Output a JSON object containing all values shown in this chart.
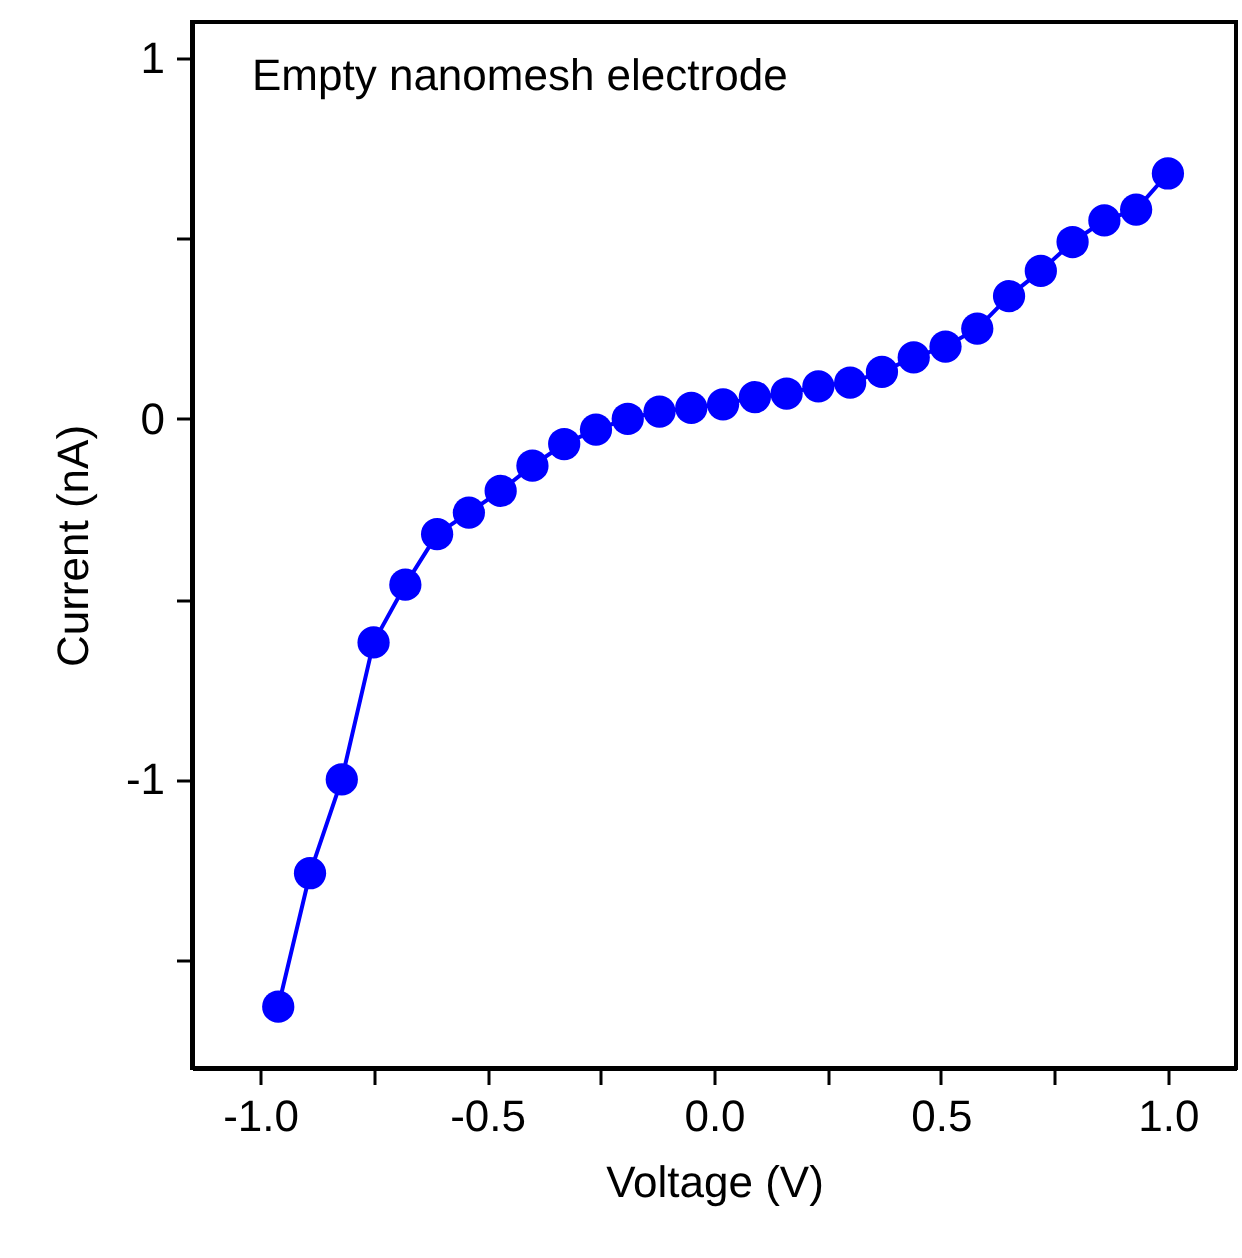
{
  "chart_data": {
    "type": "line",
    "xlabel": "Voltage (V)",
    "ylabel": "Current (nA)",
    "annotations": [
      "Empty nanomesh electrode"
    ],
    "x": [
      -0.96,
      -0.89,
      -0.82,
      -0.75,
      -0.68,
      -0.61,
      -0.54,
      -0.47,
      -0.4,
      -0.33,
      -0.26,
      -0.19,
      -0.12,
      -0.05,
      0.02,
      0.09,
      0.16,
      0.23,
      0.3,
      0.37,
      0.44,
      0.51,
      0.58,
      0.65,
      0.72,
      0.79,
      0.86,
      0.93,
      1.0
    ],
    "series": [
      {
        "color": "#0000ff",
        "values": [
          -1.63,
          -1.26,
          -1.0,
          -0.62,
          -0.46,
          -0.32,
          -0.26,
          -0.2,
          -0.13,
          -0.07,
          -0.03,
          0.0,
          0.02,
          0.03,
          0.04,
          0.06,
          0.07,
          0.09,
          0.1,
          0.13,
          0.17,
          0.2,
          0.25,
          0.34,
          0.41,
          0.49,
          0.55,
          0.58,
          0.68
        ]
      }
    ],
    "xlim": [
      -1.15,
      1.15
    ],
    "ylim": [
      -1.8,
      1.1
    ],
    "xticks": [
      {
        "value": -1,
        "label": "-1.0"
      },
      {
        "value": -0.75,
        "label": null
      },
      {
        "value": -0.5,
        "label": "-0.5"
      },
      {
        "value": -0.25,
        "label": null
      },
      {
        "value": 0,
        "label": "0.0"
      },
      {
        "value": 0.25,
        "label": null
      },
      {
        "value": 0.5,
        "label": "0.5"
      },
      {
        "value": 0.75,
        "label": null
      },
      {
        "value": 1,
        "label": "1.0"
      }
    ],
    "yticks": [
      {
        "value": -1.5,
        "label": null
      },
      -1,
      {
        "value": -0.5,
        "label": null
      },
      0,
      {
        "value": 0.5,
        "label": null
      },
      1
    ],
    "grid": false,
    "marker": "circle",
    "line_style": "solid"
  }
}
